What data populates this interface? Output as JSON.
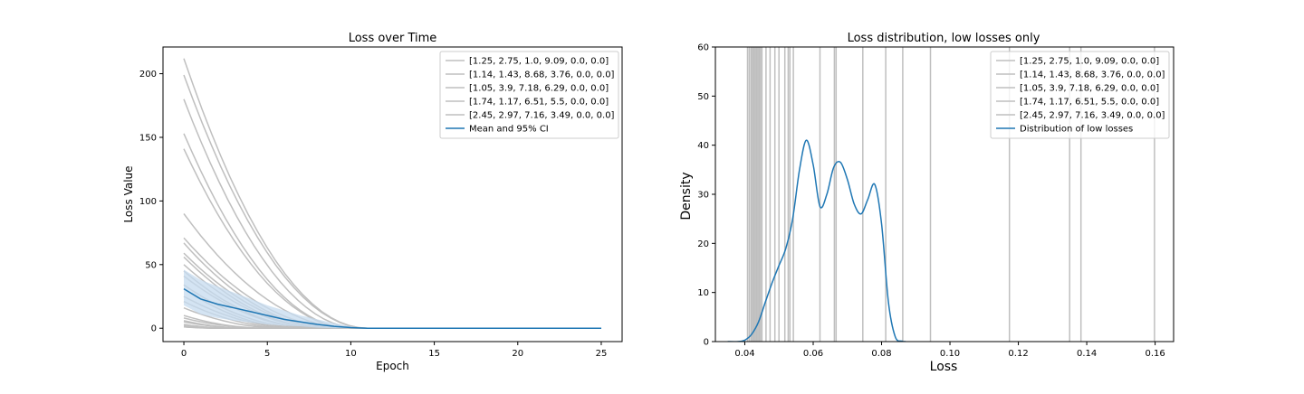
{
  "colors": {
    "grey": "#bfbfbf",
    "blue": "#1f77b4",
    "band": "#c6dbef"
  },
  "chart_data": [
    {
      "type": "line",
      "title": "Loss over Time",
      "xlabel": "Epoch",
      "ylabel": "Loss Value",
      "xlim": [
        -1.25,
        26.25
      ],
      "ylim": [
        -10.5,
        221
      ],
      "xticks": [
        0,
        5,
        10,
        15,
        20,
        25
      ],
      "xtick_labels": [
        "0",
        "5",
        "10",
        "15",
        "20",
        "25"
      ],
      "yticks": [
        0,
        50,
        100,
        150,
        200
      ],
      "ytick_labels": [
        "0",
        "50",
        "100",
        "150",
        "200"
      ],
      "legend_position": "top-right",
      "legend": [
        "[1.25, 2.75, 1.0, 9.09, 0.0, 0.0]",
        "[1.14, 1.43, 8.68, 3.76, 0.0, 0.0]",
        "[1.05, 3.9, 7.18, 6.29, 0.0, 0.0]",
        "[1.74, 1.17, 6.51, 5.5, 0.0, 0.0]",
        "[2.45, 2.97, 7.16, 3.49, 0.0, 0.0]",
        "Mean and 95% CI"
      ],
      "run_starts": [
        212,
        199,
        180,
        153,
        141,
        90,
        71,
        67,
        59,
        56,
        50,
        45,
        41,
        34,
        31,
        25,
        21,
        16,
        10,
        8,
        6,
        5,
        3,
        2,
        1
      ],
      "run_zero_epoch": [
        11,
        11,
        10.5,
        10,
        10,
        10,
        9.5,
        9,
        9,
        8.5,
        8.5,
        8,
        8,
        7.5,
        7,
        7,
        6.5,
        6,
        5,
        5,
        4,
        4,
        3,
        2,
        2
      ],
      "mean": {
        "x": [
          0,
          1,
          2,
          3,
          4,
          5,
          6,
          7,
          8,
          9,
          10,
          11,
          25
        ],
        "y": [
          31,
          23,
          19,
          16,
          13,
          10,
          7,
          5,
          3,
          1.5,
          0.5,
          0,
          0
        ],
        "lower": [
          18,
          11,
          8,
          6,
          4.5,
          3,
          2,
          1.5,
          0.5,
          0,
          0,
          0,
          0
        ],
        "upper": [
          46,
          38,
          33,
          28,
          23,
          18,
          14,
          10,
          7,
          4,
          1.5,
          0,
          0
        ]
      }
    },
    {
      "type": "line",
      "title": "Loss distribution, low losses only",
      "xlabel": "Loss",
      "ylabel": "Density",
      "xlim": [
        0.0314,
        0.1654
      ],
      "ylim": [
        0,
        60
      ],
      "xticks": [
        0.04,
        0.06,
        0.08,
        0.1,
        0.12,
        0.14,
        0.16
      ],
      "xtick_labels": [
        "0.04",
        "0.06",
        "0.08",
        "0.10",
        "0.12",
        "0.14",
        "0.16"
      ],
      "yticks": [
        0,
        10,
        20,
        30,
        40,
        50,
        60
      ],
      "ytick_labels": [
        "0",
        "10",
        "20",
        "30",
        "40",
        "50",
        "60"
      ],
      "legend_position": "top-right",
      "legend": [
        "[1.25, 2.75, 1.0, 9.09, 0.0, 0.0]",
        "[1.14, 1.43, 8.68, 3.76, 0.0, 0.0]",
        "[1.05, 3.9, 7.18, 6.29, 0.0, 0.0]",
        "[1.74, 1.17, 6.51, 5.5, 0.0, 0.0]",
        "[2.45, 2.97, 7.16, 3.49, 0.0, 0.0]",
        "Distribution of low losses"
      ],
      "vlines": [
        0.0408,
        0.0413,
        0.0418,
        0.0422,
        0.0426,
        0.043,
        0.0434,
        0.0438,
        0.0442,
        0.0446,
        0.045,
        0.0462,
        0.0474,
        0.0488,
        0.05,
        0.0517,
        0.0527,
        0.0532,
        0.0542,
        0.062,
        0.0662,
        0.0667,
        0.0745,
        0.0812,
        0.0862,
        0.0943,
        0.1174,
        0.135,
        0.1383,
        0.1598
      ],
      "density": {
        "x": [
          0.035,
          0.038,
          0.04,
          0.042,
          0.044,
          0.046,
          0.048,
          0.05,
          0.052,
          0.054,
          0.056,
          0.058,
          0.06,
          0.062,
          0.064,
          0.066,
          0.068,
          0.07,
          0.072,
          0.074,
          0.076,
          0.078,
          0.08,
          0.082,
          0.084,
          0.086,
          0.087
        ],
        "y": [
          0,
          0,
          0.3,
          1.5,
          4,
          8,
          12,
          15.5,
          19,
          25,
          35,
          41,
          36,
          27.5,
          30,
          35.5,
          36.5,
          33,
          28,
          26,
          29,
          32,
          24,
          8,
          1,
          0.1,
          0
        ]
      }
    }
  ]
}
